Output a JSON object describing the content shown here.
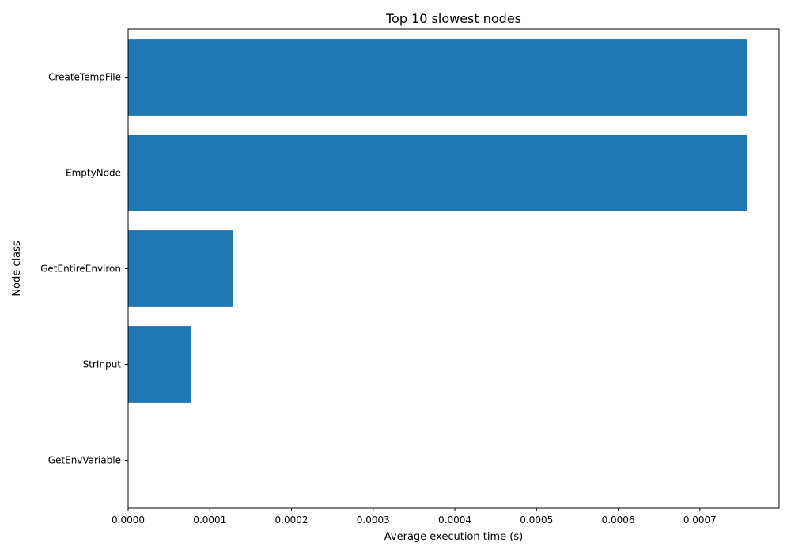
{
  "chart_data": {
    "type": "bar",
    "orientation": "horizontal",
    "title": "Top 10 slowest nodes",
    "xlabel": "Average execution time (s)",
    "ylabel": "Node class",
    "categories": [
      "CreateTempFile",
      "EmptyNode",
      "GetEntireEnviron",
      "StrInput",
      "GetEnvVariable"
    ],
    "values": [
      0.000758,
      0.000758,
      0.000128,
      7.65e-05,
      0.0
    ],
    "xlim": [
      0,
      0.000797
    ],
    "xticks": [
      "0.0000",
      "0.0001",
      "0.0002",
      "0.0003",
      "0.0004",
      "0.0005",
      "0.0006",
      "0.0007"
    ],
    "grid": false,
    "bar_color": "#1f77b4"
  }
}
